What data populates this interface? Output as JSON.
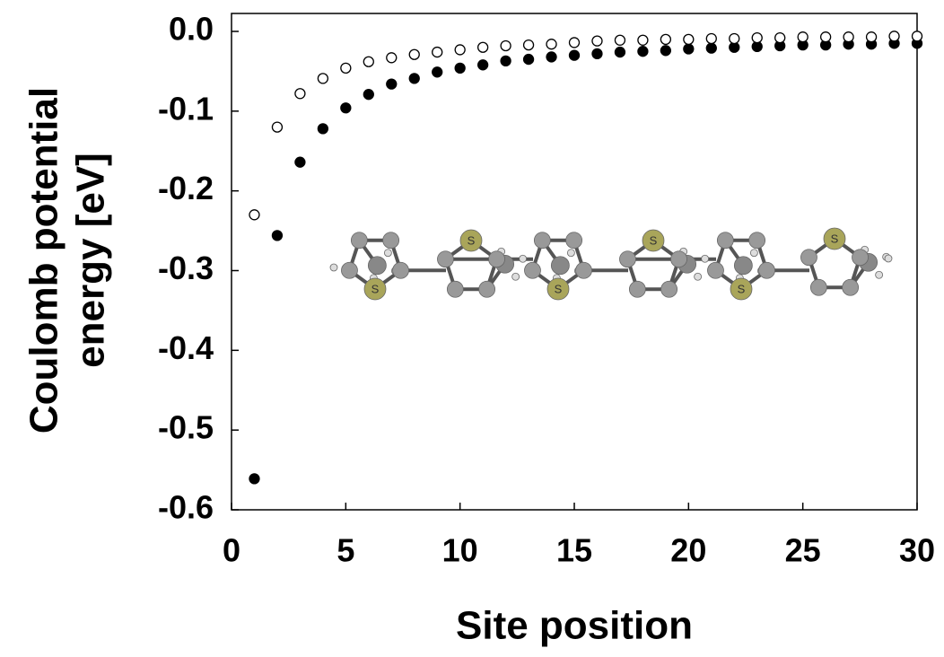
{
  "chart_data": {
    "type": "scatter",
    "xlabel": "Site position",
    "ylabel": [
      "Coulomb potential",
      "energy [eV]"
    ],
    "x": [
      1,
      2,
      3,
      4,
      5,
      6,
      7,
      8,
      9,
      10,
      11,
      12,
      13,
      14,
      15,
      16,
      17,
      18,
      19,
      20,
      21,
      22,
      23,
      24,
      25,
      26,
      27,
      28,
      29,
      30
    ],
    "series": [
      {
        "color": "#000000",
        "filled": true,
        "values": [
          -0.561,
          -0.256,
          -0.164,
          -0.122,
          -0.096,
          -0.079,
          -0.066,
          -0.059,
          -0.051,
          -0.046,
          -0.042,
          -0.037,
          -0.035,
          -0.032,
          -0.03,
          -0.028,
          -0.026,
          -0.025,
          -0.024,
          -0.022,
          -0.021,
          -0.02,
          -0.019,
          -0.018,
          -0.017,
          -0.017,
          -0.016,
          -0.016,
          -0.015,
          -0.015
        ]
      },
      {
        "color": "#000000",
        "filled": false,
        "values": [
          -0.23,
          -0.12,
          -0.078,
          -0.059,
          -0.046,
          -0.038,
          -0.033,
          -0.029,
          -0.026,
          -0.023,
          -0.02,
          -0.018,
          -0.017,
          -0.016,
          -0.014,
          -0.012,
          -0.011,
          -0.011,
          -0.01,
          -0.01,
          -0.009,
          -0.009,
          -0.008,
          -0.008,
          -0.007,
          -0.007,
          -0.007,
          -0.007,
          -0.006,
          -0.006
        ]
      }
    ],
    "xlim": [
      0,
      30
    ],
    "xticks": [
      0,
      5,
      10,
      15,
      20,
      25,
      30
    ],
    "ylim": [
      -0.6,
      0.0225
    ],
    "yticks": [
      {
        "value": 0,
        "label": "0.0"
      },
      -0.1,
      -0.2,
      -0.3,
      -0.4,
      -0.5,
      -0.6
    ],
    "grid": false,
    "annotations": [
      "S",
      "S",
      "S",
      "S",
      "S",
      "S"
    ]
  }
}
